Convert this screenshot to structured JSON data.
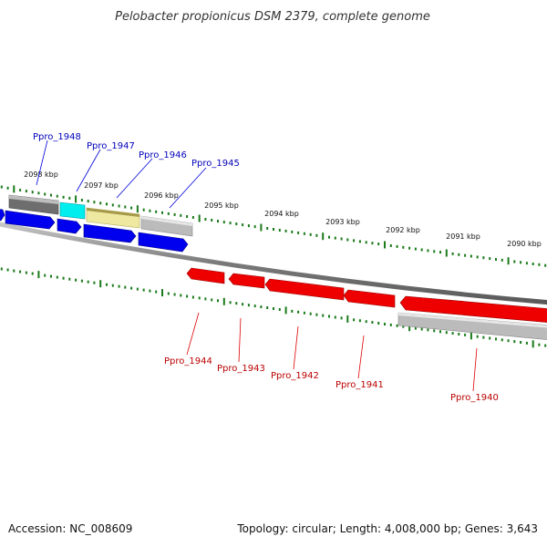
{
  "title": "Pelobacter propionicus DSM 2379, complete genome",
  "scale_labels": [
    "2098 kbp",
    "2097 kbp",
    "2096 kbp",
    "2095 kbp",
    "2094 kbp",
    "2093 kbp",
    "2092 kbp",
    "2091 kbp",
    "2090 kbp"
  ],
  "top_genes": [
    "Ppro_1948",
    "Ppro_1947",
    "Ppro_1946",
    "Ppro_1945"
  ],
  "bottom_genes": [
    "Ppro_1944",
    "Ppro_1943",
    "Ppro_1942",
    "Ppro_1941",
    "Ppro_1940"
  ],
  "colors": {
    "forward_gene": "#0000ee",
    "reverse_gene": "#ee0000",
    "tick": "#1a7a1a",
    "backbone": "#888888",
    "top_label": "#0000bb",
    "bottom_label": "#bb0000",
    "bar_dark": "#666666",
    "bar_cyan": "#00eeee",
    "bar_khaki": "#eee8a0",
    "bar_gray": "#bbbbbb"
  },
  "footer": {
    "accession": "Accession: NC_008609",
    "topology": "Topology: circular; Length: 4,008,000 bp; Genes: 3,643"
  }
}
